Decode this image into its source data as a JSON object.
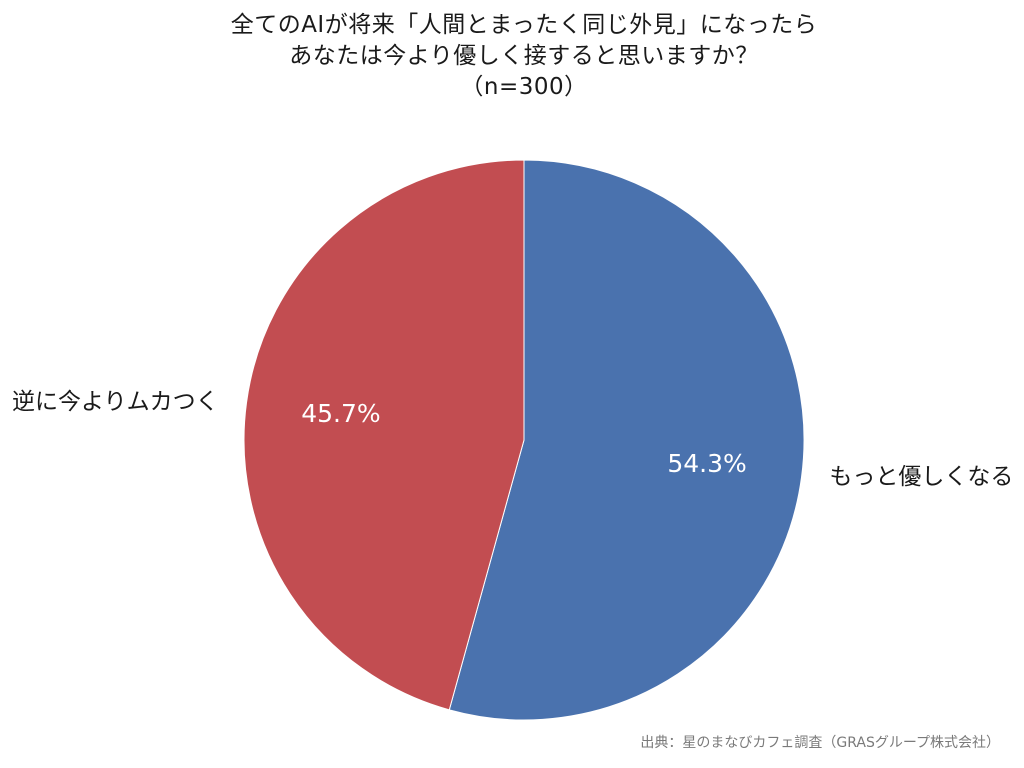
{
  "title_lines": [
    "全てのAIが将来「人間とまったく同じ外見」になったら",
    "あなたは今より優しく接すると思いますか？",
    "（n=300）"
  ],
  "source": "出典：星のまなびカフェ調査（GRASグループ株式会社）",
  "chart_data": {
    "type": "pie",
    "title": "全てのAIが将来「人間とまったく同じ外見」になったら あなたは今より優しく接すると思いますか？ （n=300）",
    "sample_size": 300,
    "start_angle_deg": 0,
    "direction": "clockwise",
    "slices": [
      {
        "label": "もっと優しくなる",
        "value": 54.3,
        "value_label": "54.3%",
        "color": "#4a72ae"
      },
      {
        "label": "逆に今よりムカつく",
        "value": 45.7,
        "value_label": "45.7%",
        "color": "#c24d51"
      }
    ]
  }
}
